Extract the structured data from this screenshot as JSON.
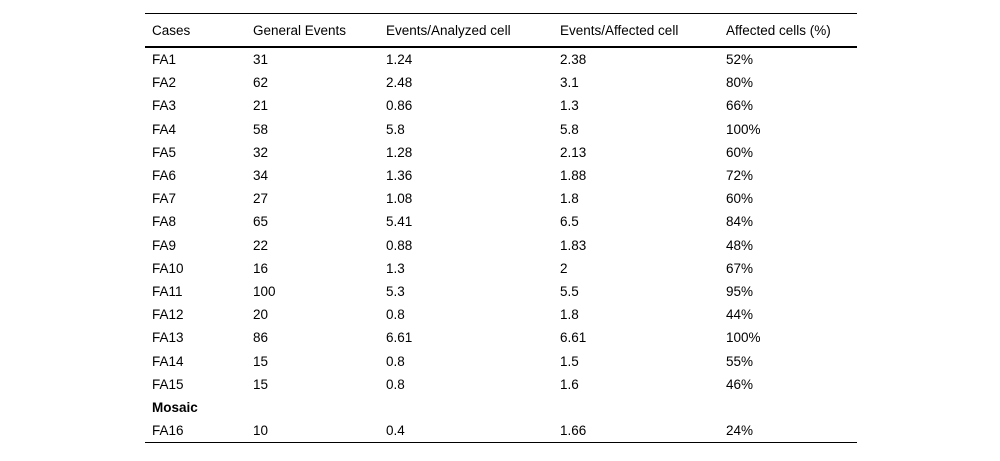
{
  "table": {
    "columns": [
      "Cases",
      "General Events",
      "Events/Analyzed cell",
      "Events/Affected cell",
      "Affected cells (%)"
    ],
    "rows": [
      {
        "bold": false,
        "cells": [
          "FA1",
          "31",
          "1.24",
          "2.38",
          "52%"
        ]
      },
      {
        "bold": false,
        "cells": [
          "FA2",
          "62",
          "2.48",
          "3.1",
          "80%"
        ]
      },
      {
        "bold": false,
        "cells": [
          "FA3",
          "21",
          "0.86",
          "1.3",
          "66%"
        ]
      },
      {
        "bold": false,
        "cells": [
          "FA4",
          "58",
          "5.8",
          "5.8",
          "100%"
        ]
      },
      {
        "bold": false,
        "cells": [
          "FA5",
          "32",
          "1.28",
          "2.13",
          "60%"
        ]
      },
      {
        "bold": false,
        "cells": [
          "FA6",
          "34",
          "1.36",
          "1.88",
          "72%"
        ]
      },
      {
        "bold": false,
        "cells": [
          "FA7",
          "27",
          "1.08",
          "1.8",
          "60%"
        ]
      },
      {
        "bold": false,
        "cells": [
          "FA8",
          "65",
          "5.41",
          "6.5",
          "84%"
        ]
      },
      {
        "bold": false,
        "cells": [
          "FA9",
          "22",
          "0.88",
          "1.83",
          "48%"
        ]
      },
      {
        "bold": false,
        "cells": [
          "FA10",
          "16",
          "1.3",
          "2",
          "67%"
        ]
      },
      {
        "bold": false,
        "cells": [
          "FA11",
          "100",
          "5.3",
          "5.5",
          "95%"
        ]
      },
      {
        "bold": false,
        "cells": [
          "FA12",
          "20",
          "0.8",
          "1.8",
          "44%"
        ]
      },
      {
        "bold": false,
        "cells": [
          "FA13",
          "86",
          "6.61",
          "6.61",
          "100%"
        ]
      },
      {
        "bold": false,
        "cells": [
          "FA14",
          "15",
          "0.8",
          "1.5",
          "55%"
        ]
      },
      {
        "bold": false,
        "cells": [
          "FA15",
          "15",
          "0.8",
          "1.6",
          "46%"
        ]
      },
      {
        "bold": true,
        "cells": [
          "Mosaic",
          "",
          "",
          "",
          ""
        ]
      },
      {
        "bold": false,
        "cells": [
          "FA16",
          "10",
          "0.4",
          "1.66",
          "24%"
        ]
      }
    ]
  },
  "colors": {
    "background": "#ffffff",
    "text": "#000000",
    "rule": "#000000"
  }
}
